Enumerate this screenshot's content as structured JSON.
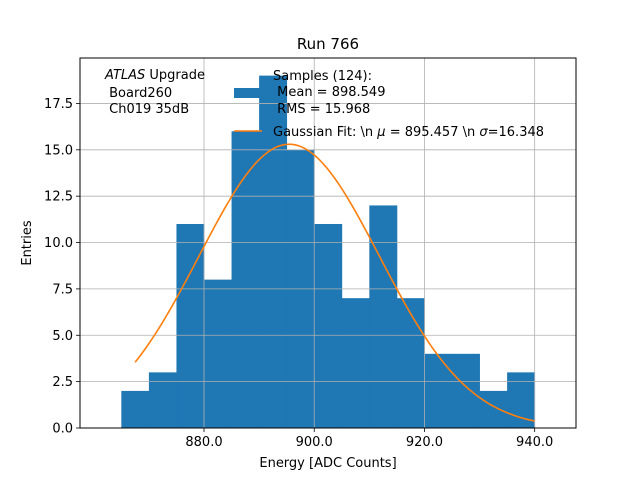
{
  "chart_data": {
    "type": "bar",
    "title": "Run 766",
    "xlabel": "Energy [ADC Counts]",
    "ylabel": "Entries",
    "xlim": [
      857.5,
      947.5
    ],
    "ylim": [
      0,
      19.95
    ],
    "grid": true,
    "bin_edges": [
      865,
      870,
      875,
      880,
      885,
      890,
      895,
      900,
      905,
      910,
      915,
      920,
      925,
      930,
      935,
      940
    ],
    "counts": [
      2,
      3,
      11,
      8,
      16,
      19,
      15,
      11,
      7,
      12,
      7,
      4,
      4,
      2,
      3
    ],
    "x_ticks": [
      880.0,
      900.0,
      920.0,
      940.0
    ],
    "x_tick_labels": [
      "880.0",
      "900.0",
      "920.0",
      "940.0"
    ],
    "y_ticks": [
      0,
      2.5,
      5,
      7.5,
      10,
      12.5,
      15,
      17.5
    ],
    "y_tick_labels": [
      "0.0",
      "2.5",
      "5.0",
      "7.5",
      "10.0",
      "12.5",
      "15.0",
      "17.5"
    ],
    "fit": {
      "name": "Gaussian Fit",
      "mu": 895.457,
      "sigma": 16.348,
      "amplitude": 15.3,
      "x_range": [
        867.5,
        940.0
      ]
    },
    "annotation": {
      "atlas": "ATLAS",
      "upgrade": " Upgrade",
      "board": " Board260",
      "channel": " Ch019 35dB"
    },
    "legend": {
      "position": "top-right",
      "samples_line1": "Samples (124):",
      "samples_line2": " Mean = 898.549",
      "samples_line3": " RMS = 15.968",
      "fit_label_prefix": "Gaussian Fit: \\n ",
      "mu_symbol": "μ",
      "fit_label_mid": " = 895.457 \\n ",
      "sigma_symbol": "σ",
      "fit_label_suffix": "=16.348"
    },
    "colors": {
      "bar": "#1f77b4",
      "fit": "#ff7f0e",
      "grid": "#b0b0b0"
    }
  }
}
